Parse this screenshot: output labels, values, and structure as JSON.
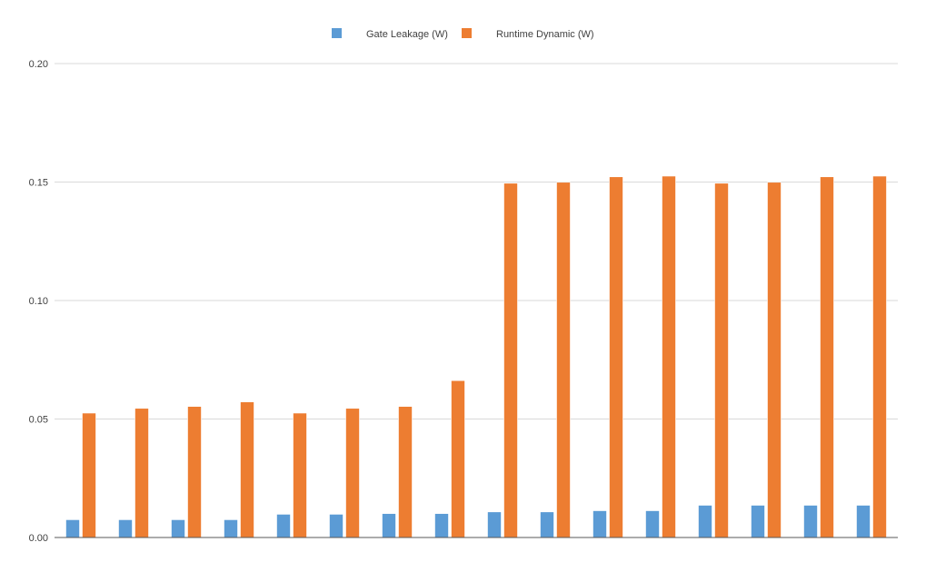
{
  "chart_data": {
    "type": "bar",
    "categories": [
      "",
      "",
      "",
      "",
      "",
      "",
      "",
      "",
      "",
      "",
      "",
      "",
      "",
      "",
      "",
      ""
    ],
    "series": [
      {
        "name": "Gate Leakage (W)",
        "color": "#5b9bd5",
        "values": [
          0.0075,
          0.0075,
          0.0075,
          0.0075,
          0.0098,
          0.0098,
          0.0101,
          0.0101,
          0.0108,
          0.0108,
          0.0113,
          0.0113,
          0.0136,
          0.0136,
          0.0136,
          0.0136
        ]
      },
      {
        "name": "Runtime Dynamic (W)",
        "color": "#ed7d31",
        "values": [
          0.0525,
          0.0545,
          0.0553,
          0.0572,
          0.0525,
          0.0545,
          0.0553,
          0.0662,
          0.1495,
          0.1499,
          0.1522,
          0.1525,
          0.1495,
          0.1499,
          0.1522,
          0.1525
        ]
      }
    ],
    "ylim": [
      0,
      0.2
    ],
    "yticks": [
      "0.00",
      "0.05",
      "0.10",
      "0.15",
      "0.20"
    ],
    "grid": true,
    "legend_position": "top-center"
  }
}
